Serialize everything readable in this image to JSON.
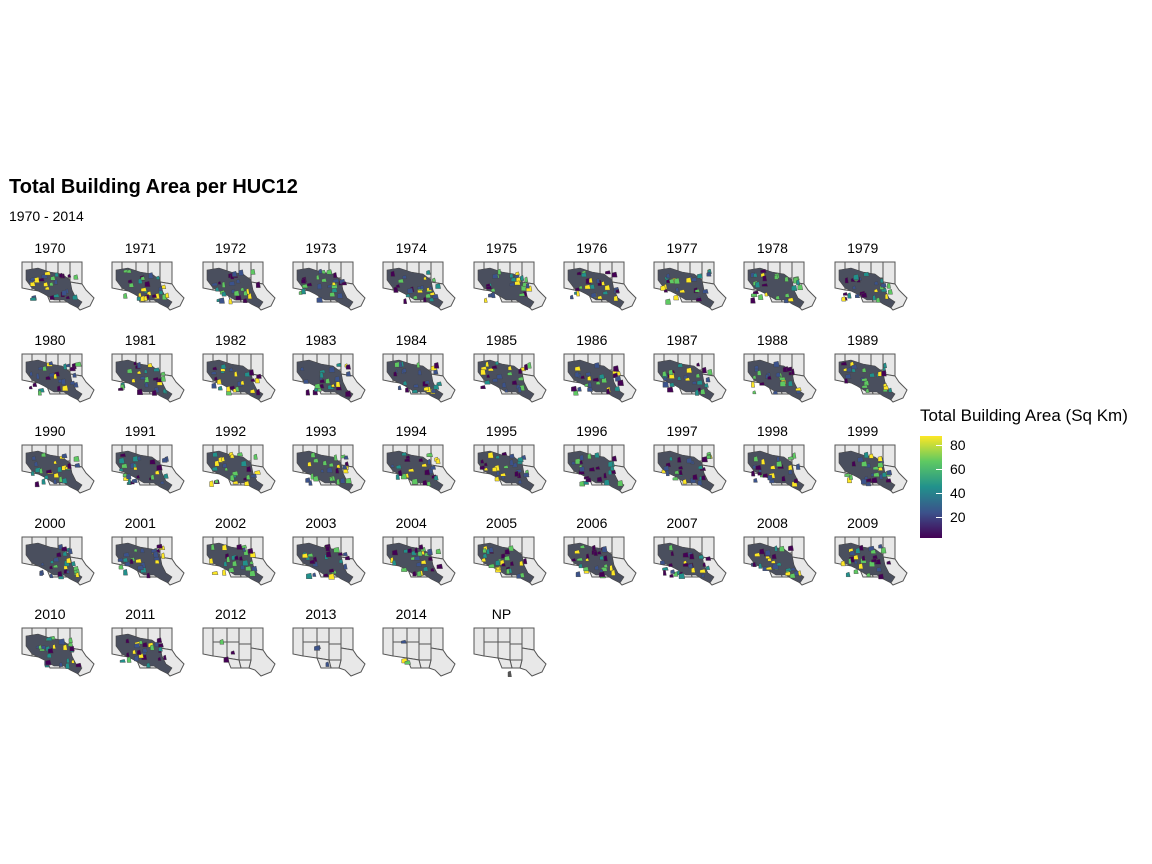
{
  "chart_data": {
    "type": "choropleth_small_multiples",
    "title": "Total Building Area per HUC12",
    "subtitle": "1970 - 2014",
    "panels": [
      "1970",
      "1971",
      "1972",
      "1973",
      "1974",
      "1975",
      "1976",
      "1977",
      "1978",
      "1979",
      "1980",
      "1981",
      "1982",
      "1983",
      "1984",
      "1985",
      "1986",
      "1987",
      "1988",
      "1989",
      "1990",
      "1991",
      "1992",
      "1993",
      "1994",
      "1995",
      "1996",
      "1997",
      "1998",
      "1999",
      "2000",
      "2001",
      "2002",
      "2003",
      "2004",
      "2005",
      "2006",
      "2007",
      "2008",
      "2009",
      "2010",
      "2011",
      "2012",
      "2013",
      "2014",
      "NP"
    ],
    "legend": {
      "title": "Total Building Area (Sq Km)",
      "ticks": [
        20,
        40,
        60,
        80
      ],
      "tick_labels": [
        "20",
        "40",
        "60",
        "80"
      ],
      "range": [
        2,
        88
      ],
      "colormap": "viridis",
      "colors": [
        "#440154",
        "#3b528b",
        "#21918c",
        "#5ec962",
        "#fde725"
      ],
      "position": "right"
    },
    "base_fill": "#e8e8e8",
    "boundary_color": "#555555"
  }
}
